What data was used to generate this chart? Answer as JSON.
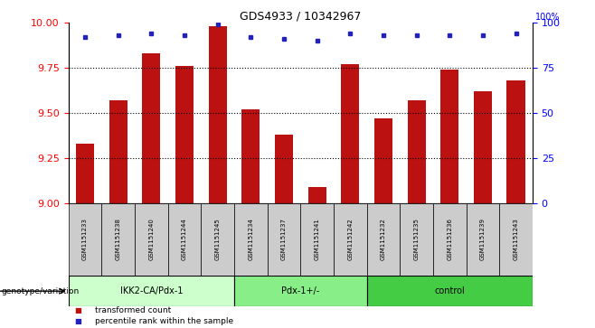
{
  "title": "GDS4933 / 10342967",
  "samples": [
    "GSM1151233",
    "GSM1151238",
    "GSM1151240",
    "GSM1151244",
    "GSM1151245",
    "GSM1151234",
    "GSM1151237",
    "GSM1151241",
    "GSM1151242",
    "GSM1151232",
    "GSM1151235",
    "GSM1151236",
    "GSM1151239",
    "GSM1151243"
  ],
  "transformed_counts": [
    9.33,
    9.57,
    9.83,
    9.76,
    9.98,
    9.52,
    9.38,
    9.09,
    9.77,
    9.47,
    9.57,
    9.74,
    9.62,
    9.68
  ],
  "percentile_ranks": [
    92,
    93,
    94,
    93,
    99,
    92,
    91,
    90,
    94,
    93,
    93,
    93,
    93,
    94
  ],
  "groups": [
    {
      "name": "IKK2-CA/Pdx-1",
      "start": 0,
      "end": 5,
      "color": "#ccffcc"
    },
    {
      "name": "Pdx-1+/-",
      "start": 5,
      "end": 9,
      "color": "#88ee88"
    },
    {
      "name": "control",
      "start": 9,
      "end": 14,
      "color": "#44cc44"
    }
  ],
  "ylim_left": [
    9.0,
    10.0
  ],
  "ylim_right": [
    0,
    100
  ],
  "yticks_left": [
    9.0,
    9.25,
    9.5,
    9.75,
    10.0
  ],
  "yticks_right": [
    0,
    25,
    50,
    75,
    100
  ],
  "bar_color": "#bb1111",
  "dot_color": "#2222bb",
  "bar_bottom": 9.0,
  "label_transformed": "transformed count",
  "label_percentile": "percentile rank within the sample",
  "genotype_label": "genotype/variation",
  "sample_bg_color": "#cccccc"
}
